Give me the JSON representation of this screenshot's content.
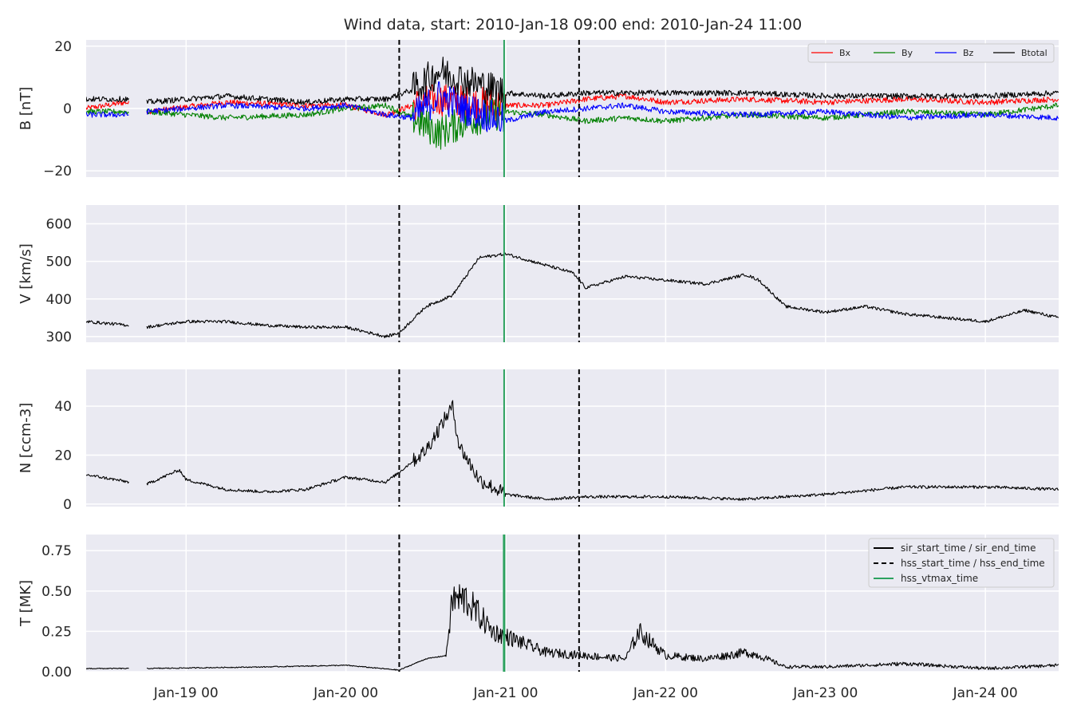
{
  "title": "Wind data, start: 2010-Jan-18 09:00  end: 2010-Jan-24 11:00",
  "colors": {
    "background": "#eaeaf2",
    "grid": "#ffffff",
    "bx": "#ff0000",
    "by": "#008000",
    "bz": "#0000ff",
    "btotal": "#000000",
    "data": "#000000",
    "hss_vtmax": "#2ca25f"
  },
  "chart_data": {
    "type": "line",
    "x_axis": {
      "start": "2010-01-18T09:00",
      "end": "2010-01-24T11:00",
      "tick_labels": [
        "Jan-19 00",
        "Jan-20 00",
        "Jan-21 00",
        "Jan-22 00",
        "Jan-23 00",
        "Jan-24 00"
      ],
      "tick_times": [
        "2010-01-19T00:00",
        "2010-01-20T00:00",
        "2010-01-21T00:00",
        "2010-01-22T00:00",
        "2010-01-23T00:00",
        "2010-01-24T00:00"
      ]
    },
    "data_gap": [
      "2010-01-18T15:30",
      "2010-01-18T18:00"
    ],
    "events": {
      "hss_start_time": "2010-01-20T08:00",
      "hss_end_time": "2010-01-21T11:00",
      "hss_vtmax_time": "2010-01-20T23:45"
    },
    "legend_labels": {
      "sir": "sir_start_time / sir_end_time",
      "hss": "hss_start_time / hss_end_time",
      "vtmax": "hss_vtmax_time"
    },
    "panels": [
      {
        "ylabel": "B [nT]",
        "ylim": [
          -22,
          22
        ],
        "yticks": [
          -20,
          0,
          20
        ],
        "ytick_labels": [
          "−20",
          "0",
          "20"
        ],
        "legend_location": "top-right",
        "series": [
          {
            "name": "Bx",
            "times": [
              "2010-01-18T09:00",
              "2010-01-18T15:00",
              "2010-01-18T18:00",
              "2010-01-19T06:00",
              "2010-01-19T18:00",
              "2010-01-20T00:00",
              "2010-01-20T06:00",
              "2010-01-20T10:00",
              "2010-01-20T14:00",
              "2010-01-20T18:00",
              "2010-01-21T00:00",
              "2010-01-21T06:00",
              "2010-01-21T12:00",
              "2010-01-21T18:00",
              "2010-01-22T00:00",
              "2010-01-22T12:00",
              "2010-01-23T00:00",
              "2010-01-23T12:00",
              "2010-01-24T00:00",
              "2010-01-24T11:00"
            ],
            "values": [
              0,
              2,
              -1,
              2,
              1,
              1,
              -2,
              1,
              3,
              2,
              1,
              1,
              3,
              4,
              2,
              3,
              2,
              3,
              2,
              3
            ]
          },
          {
            "name": "By",
            "times": [
              "2010-01-18T09:00",
              "2010-01-18T15:00",
              "2010-01-18T18:00",
              "2010-01-19T06:00",
              "2010-01-19T18:00",
              "2010-01-20T00:00",
              "2010-01-20T06:00",
              "2010-01-20T10:00",
              "2010-01-20T14:00",
              "2010-01-20T18:00",
              "2010-01-21T00:00",
              "2010-01-21T06:00",
              "2010-01-21T12:00",
              "2010-01-21T18:00",
              "2010-01-22T00:00",
              "2010-01-22T12:00",
              "2010-01-23T00:00",
              "2010-01-23T12:00",
              "2010-01-24T00:00",
              "2010-01-24T11:00"
            ],
            "values": [
              -1,
              -1,
              -1,
              -3,
              -2,
              0,
              1,
              -3,
              -8,
              -4,
              -1,
              -2,
              -4,
              -3,
              -4,
              -2,
              -3,
              -1,
              -2,
              1
            ]
          },
          {
            "name": "Bz",
            "times": [
              "2010-01-18T09:00",
              "2010-01-18T15:00",
              "2010-01-18T18:00",
              "2010-01-19T06:00",
              "2010-01-19T18:00",
              "2010-01-20T00:00",
              "2010-01-20T06:00",
              "2010-01-20T10:00",
              "2010-01-20T14:00",
              "2010-01-20T18:00",
              "2010-01-21T00:00",
              "2010-01-21T06:00",
              "2010-01-21T12:00",
              "2010-01-21T18:00",
              "2010-01-22T00:00",
              "2010-01-22T12:00",
              "2010-01-23T00:00",
              "2010-01-23T12:00",
              "2010-01-24T00:00",
              "2010-01-24T11:00"
            ],
            "values": [
              -2,
              -2,
              -1,
              1,
              0,
              1,
              -2,
              -3,
              4,
              0,
              -4,
              -1,
              0,
              1,
              -1,
              -2,
              -1,
              -3,
              -2,
              -3
            ]
          },
          {
            "name": "Btotal",
            "times": [
              "2010-01-18T09:00",
              "2010-01-18T15:00",
              "2010-01-18T18:00",
              "2010-01-19T06:00",
              "2010-01-19T18:00",
              "2010-01-20T00:00",
              "2010-01-20T06:00",
              "2010-01-20T10:00",
              "2010-01-20T14:00",
              "2010-01-20T18:00",
              "2010-01-21T00:00",
              "2010-01-21T06:00",
              "2010-01-21T12:00",
              "2010-01-21T18:00",
              "2010-01-22T00:00",
              "2010-01-22T12:00",
              "2010-01-23T00:00",
              "2010-01-23T12:00",
              "2010-01-24T00:00",
              "2010-01-24T11:00"
            ],
            "values": [
              3,
              3,
              2,
              4,
              2,
              3,
              3,
              6,
              12,
              9,
              5,
              4,
              5,
              5,
              5,
              5,
              4,
              4,
              4,
              5
            ]
          }
        ]
      },
      {
        "ylabel": "V [km/s]",
        "ylim": [
          285,
          650
        ],
        "yticks": [
          300,
          400,
          500,
          600
        ],
        "ytick_labels": [
          "300",
          "400",
          "500",
          "600"
        ],
        "series": [
          {
            "name": "",
            "times": [
              "2010-01-18T09:00",
              "2010-01-18T15:30",
              "2010-01-18T18:00",
              "2010-01-19T00:00",
              "2010-01-19T06:00",
              "2010-01-19T12:00",
              "2010-01-19T18:00",
              "2010-01-20T00:00",
              "2010-01-20T06:00",
              "2010-01-20T08:00",
              "2010-01-20T12:00",
              "2010-01-20T16:00",
              "2010-01-20T20:00",
              "2010-01-21T00:00",
              "2010-01-21T06:00",
              "2010-01-21T10:00",
              "2010-01-21T12:00",
              "2010-01-21T18:00",
              "2010-01-22T00:00",
              "2010-01-22T06:00",
              "2010-01-22T12:00",
              "2010-01-22T14:00",
              "2010-01-22T18:00",
              "2010-01-22T22:00",
              "2010-01-23T00:00",
              "2010-01-23T06:00",
              "2010-01-23T12:00",
              "2010-01-23T18:00",
              "2010-01-24T00:00",
              "2010-01-24T06:00",
              "2010-01-24T11:00"
            ],
            "values": [
              340,
              330,
              325,
              340,
              340,
              330,
              325,
              325,
              300,
              310,
              380,
              410,
              510,
              520,
              490,
              470,
              430,
              460,
              450,
              440,
              465,
              450,
              380,
              370,
              365,
              380,
              360,
              350,
              340,
              370,
              350
            ]
          }
        ]
      },
      {
        "ylabel": "N [ccm-3]",
        "ylim": [
          -1,
          55
        ],
        "yticks": [
          0,
          20,
          40
        ],
        "ytick_labels": [
          "0",
          "20",
          "40"
        ],
        "series": [
          {
            "name": "",
            "times": [
              "2010-01-18T09:00",
              "2010-01-18T15:30",
              "2010-01-18T18:00",
              "2010-01-18T23:00",
              "2010-01-19T00:00",
              "2010-01-19T06:00",
              "2010-01-19T12:00",
              "2010-01-19T18:00",
              "2010-01-20T00:00",
              "2010-01-20T06:00",
              "2010-01-20T08:00",
              "2010-01-20T12:00",
              "2010-01-20T16:00",
              "2010-01-20T17:00",
              "2010-01-20T20:00",
              "2010-01-21T00:00",
              "2010-01-21T06:00",
              "2010-01-21T12:00",
              "2010-01-22T00:00",
              "2010-01-22T12:00",
              "2010-01-23T00:00",
              "2010-01-23T12:00",
              "2010-01-24T00:00",
              "2010-01-24T11:00"
            ],
            "values": [
              12,
              9,
              8,
              14,
              10,
              6,
              5,
              6,
              11,
              9,
              13,
              22,
              40,
              24,
              10,
              4,
              2,
              3,
              3,
              2,
              4,
              7,
              7,
              6
            ]
          }
        ]
      },
      {
        "ylabel": "T [MK]",
        "ylim": [
          0,
          0.85
        ],
        "yticks": [
          0.0,
          0.25,
          0.5,
          0.75
        ],
        "ytick_labels": [
          "0.00",
          "0.25",
          "0.50",
          "0.75"
        ],
        "legend_location": "top-right",
        "series": [
          {
            "name": "",
            "times": [
              "2010-01-18T09:00",
              "2010-01-18T15:30",
              "2010-01-18T18:00",
              "2010-01-19T12:00",
              "2010-01-20T00:00",
              "2010-01-20T08:00",
              "2010-01-20T12:00",
              "2010-01-20T15:00",
              "2010-01-20T16:00",
              "2010-01-20T18:00",
              "2010-01-20T22:00",
              "2010-01-21T00:00",
              "2010-01-21T06:00",
              "2010-01-21T12:00",
              "2010-01-21T18:00",
              "2010-01-21T20:00",
              "2010-01-22T00:00",
              "2010-01-22T06:00",
              "2010-01-22T12:00",
              "2010-01-22T14:00",
              "2010-01-22T18:00",
              "2010-01-23T00:00",
              "2010-01-23T12:00",
              "2010-01-24T00:00",
              "2010-01-24T11:00"
            ],
            "values": [
              0.02,
              0.02,
              0.02,
              0.03,
              0.04,
              0.01,
              0.08,
              0.1,
              0.45,
              0.45,
              0.25,
              0.22,
              0.12,
              0.1,
              0.08,
              0.25,
              0.1,
              0.08,
              0.12,
              0.1,
              0.03,
              0.03,
              0.05,
              0.02,
              0.04
            ]
          }
        ]
      }
    ]
  }
}
